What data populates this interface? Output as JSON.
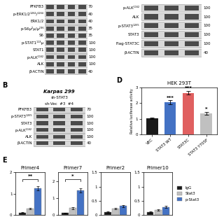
{
  "chart_data": [
    {
      "type": "blot",
      "categories": [
        "PFKFB3",
        "p-ERK1/2¹²⁶²/¹²⁶⁴",
        "ERK1/2",
        "p-S6µ²µ/µ²³⁶",
        "S6",
        "p-STAT1¹¹³µ",
        "STAT1",
        "p-ALK¹¹⁶²",
        "ALK",
        "β-ACTIN"
      ],
      "values": [
        70,
        40,
        40,
        35,
        35,
        100,
        100,
        100,
        100,
        40
      ],
      "data_labels": true,
      "lanes": 4,
      "tick_labels": false
    },
    {
      "type": "blot",
      "categories": [
        "p-ALK¹¹⁶²",
        "ALK",
        "p-STAT3¹²⁶⁵",
        "STAT3",
        "Flag-STAT3C",
        "β-ACTIN"
      ],
      "values": [
        100,
        100,
        100,
        100,
        100,
        40
      ],
      "data_labels": true,
      "lanes": 3,
      "tick_labels": false
    },
    {
      "type": "blot",
      "panel": "B",
      "title": "Karpas 299",
      "subtitle": "sh-STAT3",
      "lane_labels": "sh-Vec  #3  #4",
      "categories": [
        "PFKFB3",
        "p-STAT3¹²⁶⁵",
        "STAT3",
        "p-ALK¹¹⁶²",
        "ALK",
        "β-ACTIN"
      ],
      "values": [
        70,
        100,
        100,
        100,
        100,
        40
      ],
      "data_labels": true,
      "lanes": 3,
      "tick_labels": false
    },
    {
      "type": "bar",
      "panel": "D",
      "title": "HEK 293T",
      "categories": [
        "VEC",
        "STAT3 WT",
        "STAT3C",
        "STAT3 Y705F"
      ],
      "values": [
        1.02,
        2.05,
        2.65,
        1.35
      ],
      "errors": [
        0.05,
        0.12,
        0.12,
        0.08
      ],
      "colors": [
        "#1a1a1a",
        "#4472c4",
        "#e06060",
        "#c0c0c0"
      ],
      "ylabel": "Relative luciferase activity",
      "ylim": [
        0,
        3.0
      ],
      "yticks": [
        0,
        1,
        2,
        3
      ],
      "annotations": [
        null,
        "***",
        "***",
        "*"
      ]
    },
    {
      "type": "bar",
      "panel": "E",
      "title": "Primer4",
      "categories": [
        null
      ],
      "tick_labels": "y",
      "ylim": [
        0,
        2.0
      ],
      "yticks": [
        0,
        1,
        2
      ],
      "bracket": "**",
      "series": [
        {
          "name": "IgG",
          "color": "#1a1a1a",
          "values": [
            0.12
          ],
          "errors": [
            0.02
          ]
        },
        {
          "name": "Stat3",
          "color": "#c0c0c0",
          "values": [
            0.3
          ],
          "errors": [
            0.04
          ]
        },
        {
          "name": "p-Stat3",
          "color": "#4472c4",
          "values": [
            1.25
          ],
          "errors": [
            0.09
          ]
        }
      ]
    },
    {
      "type": "bar",
      "title": "Primer7",
      "categories": [
        null
      ],
      "tick_labels": "y",
      "ylim": [
        0,
        2.5
      ],
      "yticks": [
        0,
        1,
        2
      ],
      "bracket": "*",
      "series": [
        {
          "name": "IgG",
          "color": "#1a1a1a",
          "values": [
            0.12
          ],
          "errors": [
            0.02
          ]
        },
        {
          "name": "Stat3",
          "color": "#c0c0c0",
          "values": [
            0.4
          ],
          "errors": [
            0.05
          ]
        },
        {
          "name": "p-Stat3",
          "color": "#4472c4",
          "values": [
            1.45
          ],
          "errors": [
            0.11
          ]
        }
      ]
    },
    {
      "type": "bar",
      "title": "Primer2",
      "categories": [
        null
      ],
      "tick_labels": "y",
      "ylim": [
        0,
        1.5
      ],
      "yticks": [
        0,
        0.5,
        1,
        1.5
      ],
      "series": [
        {
          "name": "IgG",
          "color": "#1a1a1a",
          "values": [
            0.1
          ],
          "errors": [
            0.02
          ]
        },
        {
          "name": "Stat3",
          "color": "#c0c0c0",
          "values": [
            0.22
          ],
          "errors": [
            0.03
          ]
        },
        {
          "name": "p-Stat3",
          "color": "#4472c4",
          "values": [
            0.32
          ],
          "errors": [
            0.04
          ]
        }
      ]
    },
    {
      "type": "bar",
      "title": "Primer10",
      "categories": [
        null
      ],
      "tick_labels": "y",
      "ylim": [
        0,
        1.5
      ],
      "yticks": [
        0,
        0.5,
        1,
        1.5
      ],
      "legend": "center left",
      "series": [
        {
          "name": "IgG",
          "color": "#1a1a1a",
          "values": [
            0.1
          ],
          "errors": [
            0.02
          ]
        },
        {
          "name": "Stat3",
          "color": "#c0c0c0",
          "values": [
            0.18
          ],
          "errors": [
            0.03
          ]
        },
        {
          "name": "p-Stat3",
          "color": "#4472c4",
          "values": [
            0.28
          ],
          "errors": [
            0.04
          ]
        }
      ]
    }
  ]
}
